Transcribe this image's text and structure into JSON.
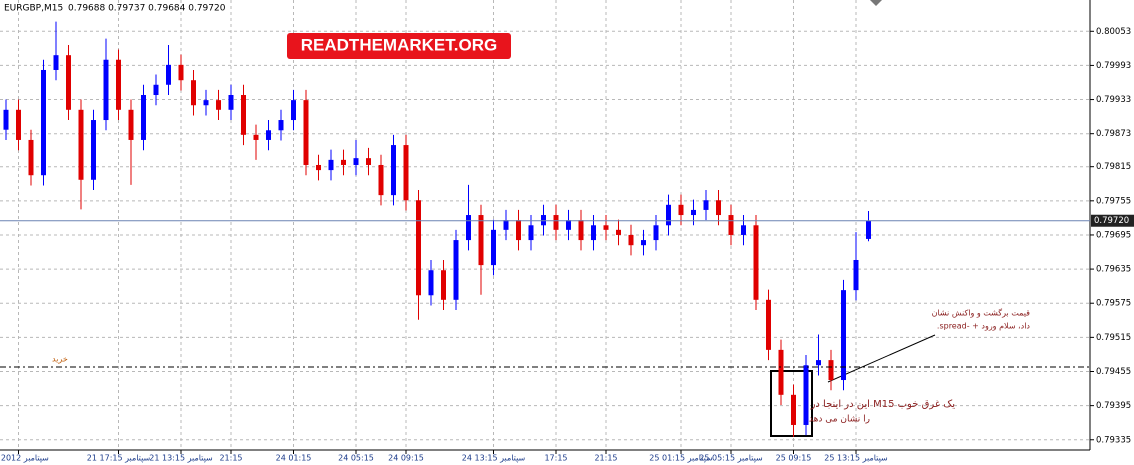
{
  "header": {
    "symbol": "EURGBP,M15",
    "quote": "0.79688 0.79737 0.79684 0.79720"
  },
  "watermark": "READTHEMARKET.ORG",
  "annotations": {
    "buy": "خرید",
    "reaction_1": "قیمت برگشت و واکنش نشان",
    "reaction_2": ".spread- + داد، سلام ورود",
    "pinbar_1": "این در اینجا در M15 یک غرق خوب",
    "pinbar_2": "را نشان می دهد"
  },
  "chart_data": {
    "type": "candlestick",
    "up_color": "#0000ff",
    "down_color": "#e00000",
    "categories": [
      null,
      "21 سپتامبر 2012",
      null,
      null,
      null,
      null,
      null,
      null,
      null,
      "21 سپتامبر 17:15",
      null,
      null,
      null,
      null,
      "21 سپتامبر 13:15",
      null,
      null,
      null,
      "21:15",
      null,
      null,
      null,
      null,
      "24 01:15",
      null,
      null,
      null,
      null,
      "24 05:15",
      null,
      null,
      null,
      "24 09:15",
      null,
      null,
      null,
      null,
      null,
      null,
      "24 سپتامبر 13:15",
      null,
      null,
      null,
      null,
      "17:15",
      null,
      null,
      null,
      "21:15",
      null,
      null,
      null,
      null,
      null,
      "25 سپتامبر 01:15",
      null,
      null,
      null,
      "25 سپتامبر 05:15",
      null,
      null,
      null,
      null,
      "25 09:15",
      null,
      null,
      null,
      null,
      "25 سپتامبر 13:15",
      null
    ],
    "open": [
      0.7988,
      0.79915,
      0.79862,
      0.798,
      0.79985,
      0.80011,
      0.79915,
      0.79792,
      0.79897,
      0.80003,
      0.79915,
      0.79862,
      0.79941,
      0.79959,
      0.79994,
      0.79967,
      0.79923,
      0.79932,
      0.79915,
      0.79941,
      0.79871,
      0.79862,
      0.79879,
      0.79897,
      0.79932,
      0.79818,
      0.79809,
      0.79827,
      0.79818,
      0.7983,
      0.79818,
      0.79765,
      0.79853,
      0.79756,
      0.79589,
      0.79633,
      0.79581,
      0.79686,
      0.7973,
      0.79642,
      0.79704,
      0.79721,
      0.79686,
      0.79712,
      0.7973,
      0.79704,
      0.79721,
      0.79686,
      0.79712,
      0.79704,
      0.79695,
      0.79677,
      0.79686,
      0.79712,
      0.79748,
      0.7973,
      0.79739,
      0.79756,
      0.7973,
      0.79695,
      0.79712,
      0.79581,
      0.79493,
      0.79414,
      0.79361,
      0.79466,
      0.79475,
      0.7944,
      0.79598,
      0.79688
    ],
    "high": [
      0.79933,
      0.79933,
      0.7988,
      0.80003,
      0.8007,
      0.80029,
      0.79933,
      0.79915,
      0.8004,
      0.80021,
      0.79933,
      0.79959,
      0.79977,
      0.80029,
      0.80012,
      0.79985,
      0.7995,
      0.7995,
      0.79959,
      0.79959,
      0.79889,
      0.79897,
      0.79915,
      0.7995,
      0.7995,
      0.79836,
      0.79845,
      0.79845,
      0.79862,
      0.79848,
      0.79836,
      0.79871,
      0.79871,
      0.79774,
      0.79651,
      0.79651,
      0.79704,
      0.79783,
      0.79748,
      0.79722,
      0.79739,
      0.79739,
      0.7973,
      0.79748,
      0.79748,
      0.79739,
      0.79739,
      0.7973,
      0.7973,
      0.79722,
      0.79713,
      0.79704,
      0.7973,
      0.79766,
      0.79766,
      0.79757,
      0.79774,
      0.79774,
      0.79748,
      0.7973,
      0.7973,
      0.79599,
      0.79511,
      0.79432,
      0.79484,
      0.7952,
      0.79493,
      0.79616,
      0.797,
      0.79737
    ],
    "low": [
      0.79862,
      0.79844,
      0.79782,
      0.79782,
      0.79967,
      0.79897,
      0.7974,
      0.79774,
      0.79879,
      0.79897,
      0.79783,
      0.79844,
      0.79923,
      0.79941,
      0.79949,
      0.79905,
      0.79905,
      0.79897,
      0.79897,
      0.79853,
      0.79827,
      0.79844,
      0.79861,
      0.79879,
      0.798,
      0.79791,
      0.79791,
      0.798,
      0.798,
      0.798,
      0.79747,
      0.79747,
      0.79738,
      0.79546,
      0.79571,
      0.79563,
      0.79563,
      0.79668,
      0.7959,
      0.79624,
      0.79686,
      0.79668,
      0.79668,
      0.79694,
      0.79686,
      0.79686,
      0.79668,
      0.79668,
      0.79686,
      0.79677,
      0.79659,
      0.79659,
      0.79668,
      0.79694,
      0.79712,
      0.79712,
      0.79721,
      0.79712,
      0.79677,
      0.79677,
      0.79563,
      0.79475,
      0.79396,
      0.7934,
      0.79343,
      0.79448,
      0.79422,
      0.79422,
      0.7958,
      0.79684
    ],
    "close": [
      0.79915,
      0.79862,
      0.798,
      0.79985,
      0.80011,
      0.79915,
      0.79792,
      0.79897,
      0.80003,
      0.79915,
      0.79862,
      0.79941,
      0.79959,
      0.79994,
      0.79967,
      0.79923,
      0.79932,
      0.79915,
      0.79941,
      0.79871,
      0.79862,
      0.79879,
      0.79897,
      0.79932,
      0.79818,
      0.79809,
      0.79827,
      0.79818,
      0.7983,
      0.79818,
      0.79765,
      0.79853,
      0.79756,
      0.79589,
      0.79633,
      0.79581,
      0.79686,
      0.7973,
      0.79642,
      0.79704,
      0.79721,
      0.79686,
      0.79712,
      0.7973,
      0.79704,
      0.79721,
      0.79686,
      0.79712,
      0.79704,
      0.79695,
      0.79677,
      0.79686,
      0.79712,
      0.79748,
      0.7973,
      0.79739,
      0.79756,
      0.7973,
      0.79695,
      0.79712,
      0.79581,
      0.79493,
      0.79414,
      0.79361,
      0.79466,
      0.79475,
      0.7944,
      0.79598,
      0.79651,
      0.7972
    ],
    "ylim": [
      0.79317,
      0.80108
    ],
    "yticks": [
      0.80053,
      0.79993,
      0.79933,
      0.79873,
      0.79815,
      0.79755,
      0.79695,
      0.79635,
      0.79575,
      0.79515,
      0.79455,
      0.79395,
      0.79335
    ],
    "price_line": {
      "value": 0.7972,
      "label": "0.79720"
    },
    "buy_line": 0.79463,
    "grid": true
  }
}
